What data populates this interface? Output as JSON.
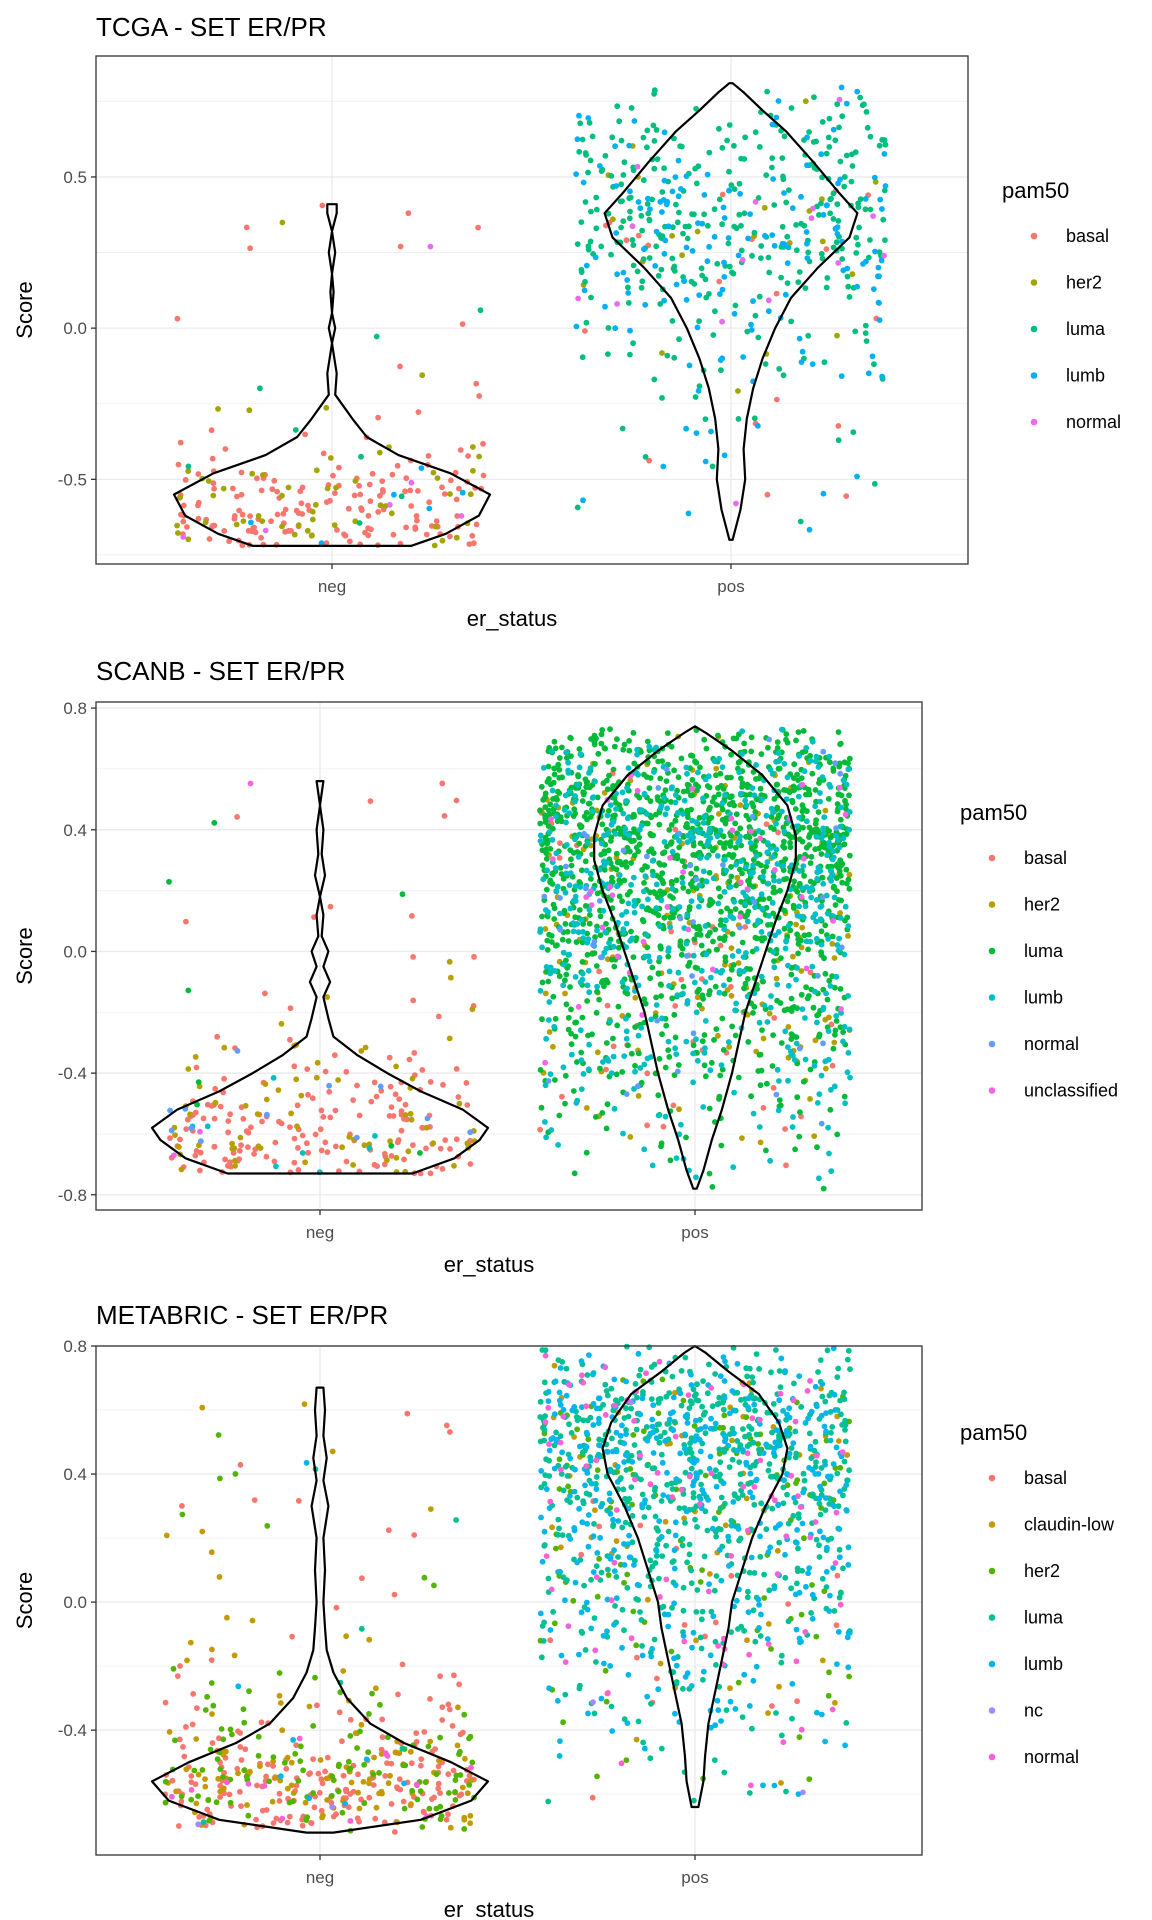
{
  "chart_data": [
    {
      "type": "scatter",
      "title": "TCGA - SET ER/PR",
      "xlabel": "er_status",
      "ylabel": "Score",
      "categories": [
        "neg",
        "pos"
      ],
      "ylim": [
        -0.78,
        0.9
      ],
      "yticks": [
        -0.5,
        0.0,
        0.5
      ],
      "ytick_labels": [
        "-0.5",
        "0.0",
        "0.5"
      ],
      "grid": true,
      "legend": {
        "title": "pam50",
        "placement": "right"
      },
      "series": [
        {
          "name": "basal",
          "color": "#F8766D"
        },
        {
          "name": "her2",
          "color": "#A3A500"
        },
        {
          "name": "luma",
          "color": "#00BF7D"
        },
        {
          "name": "lumb",
          "color": "#00B0F6"
        },
        {
          "name": "normal",
          "color": "#E76BF3"
        }
      ],
      "group_composition": {
        "neg": {
          "basal": 170,
          "her2": 55,
          "luma": 8,
          "lumb": 6,
          "normal": 6
        },
        "pos": {
          "basal": 20,
          "her2": 22,
          "luma": 330,
          "lumb": 160,
          "normal": 15
        }
      },
      "group_range": {
        "neg": [
          -0.72,
          0.41
        ],
        "pos": [
          -0.7,
          0.81
        ]
      },
      "violin": {
        "neg": {
          "min": -0.72,
          "max": 0.41,
          "mode": -0.55,
          "profile": [
            [
              -0.72,
              0.5
            ],
            [
              -0.68,
              0.72
            ],
            [
              -0.62,
              0.93
            ],
            [
              -0.55,
              1.0
            ],
            [
              -0.48,
              0.75
            ],
            [
              -0.42,
              0.42
            ],
            [
              -0.36,
              0.22
            ],
            [
              -0.3,
              0.13
            ],
            [
              -0.22,
              0.02
            ],
            [
              -0.15,
              0.03
            ],
            [
              -0.05,
              0.0
            ],
            [
              0.0,
              0.02
            ],
            [
              0.05,
              0.0
            ],
            [
              0.12,
              0.01
            ],
            [
              0.18,
              0.0
            ],
            [
              0.25,
              0.02
            ],
            [
              0.32,
              0.0
            ],
            [
              0.38,
              0.03
            ],
            [
              0.41,
              0.03
            ]
          ]
        },
        "pos": {
          "min": -0.7,
          "max": 0.81,
          "mode": 0.38,
          "profile": [
            [
              -0.7,
              0.01
            ],
            [
              -0.6,
              0.06
            ],
            [
              -0.5,
              0.09
            ],
            [
              -0.4,
              0.08
            ],
            [
              -0.3,
              0.1
            ],
            [
              -0.2,
              0.14
            ],
            [
              -0.1,
              0.2
            ],
            [
              0.0,
              0.28
            ],
            [
              0.1,
              0.38
            ],
            [
              0.2,
              0.55
            ],
            [
              0.3,
              0.75
            ],
            [
              0.38,
              0.8
            ],
            [
              0.45,
              0.68
            ],
            [
              0.55,
              0.52
            ],
            [
              0.65,
              0.35
            ],
            [
              0.72,
              0.2
            ],
            [
              0.78,
              0.08
            ],
            [
              0.81,
              0.01
            ]
          ]
        }
      }
    },
    {
      "type": "scatter",
      "title": "SCANB - SET ER/PR",
      "xlabel": "er_status",
      "ylabel": "Score",
      "categories": [
        "neg",
        "pos"
      ],
      "ylim": [
        -0.85,
        0.82
      ],
      "yticks": [
        -0.8,
        -0.4,
        0.0,
        0.4,
        0.8
      ],
      "ytick_labels": [
        "-0.8",
        "-0.4",
        "0.0",
        "0.4",
        "0.8"
      ],
      "grid": true,
      "legend": {
        "title": "pam50",
        "placement": "right"
      },
      "series": [
        {
          "name": "basal",
          "color": "#F8766D"
        },
        {
          "name": "her2",
          "color": "#B79F00"
        },
        {
          "name": "luma",
          "color": "#00BA38"
        },
        {
          "name": "lumb",
          "color": "#00BFC4"
        },
        {
          "name": "normal",
          "color": "#619CFF"
        },
        {
          "name": "unclassified",
          "color": "#F564E3"
        }
      ],
      "group_composition": {
        "neg": {
          "basal": 175,
          "her2": 70,
          "luma": 8,
          "lumb": 8,
          "normal": 12,
          "unclassified": 3
        },
        "pos": {
          "basal": 50,
          "her2": 160,
          "luma": 1350,
          "lumb": 600,
          "normal": 45,
          "unclassified": 40
        }
      },
      "group_range": {
        "neg": [
          -0.73,
          0.56
        ],
        "pos": [
          -0.78,
          0.74
        ]
      },
      "violin": {
        "neg": {
          "min": -0.73,
          "max": 0.56,
          "mode": -0.58,
          "profile": [
            [
              -0.73,
              0.55
            ],
            [
              -0.68,
              0.8
            ],
            [
              -0.62,
              0.95
            ],
            [
              -0.58,
              1.0
            ],
            [
              -0.52,
              0.85
            ],
            [
              -0.46,
              0.6
            ],
            [
              -0.4,
              0.4
            ],
            [
              -0.34,
              0.22
            ],
            [
              -0.28,
              0.08
            ],
            [
              -0.22,
              0.05
            ],
            [
              -0.15,
              0.02
            ],
            [
              -0.1,
              0.06
            ],
            [
              -0.05,
              0.02
            ],
            [
              0.0,
              0.05
            ],
            [
              0.05,
              0.01
            ],
            [
              0.12,
              0.02
            ],
            [
              0.18,
              0.0
            ],
            [
              0.25,
              0.03
            ],
            [
              0.32,
              0.01
            ],
            [
              0.4,
              0.02
            ],
            [
              0.48,
              0.0
            ],
            [
              0.56,
              0.02
            ]
          ]
        },
        "pos": {
          "min": -0.78,
          "max": 0.74,
          "mode": 0.35,
          "profile": [
            [
              -0.78,
              0.01
            ],
            [
              -0.72,
              0.05
            ],
            [
              -0.62,
              0.1
            ],
            [
              -0.52,
              0.16
            ],
            [
              -0.4,
              0.22
            ],
            [
              -0.3,
              0.26
            ],
            [
              -0.2,
              0.3
            ],
            [
              -0.1,
              0.36
            ],
            [
              0.0,
              0.42
            ],
            [
              0.1,
              0.48
            ],
            [
              0.2,
              0.55
            ],
            [
              0.3,
              0.6
            ],
            [
              0.38,
              0.6
            ],
            [
              0.48,
              0.55
            ],
            [
              0.58,
              0.4
            ],
            [
              0.66,
              0.22
            ],
            [
              0.72,
              0.06
            ],
            [
              0.74,
              0.0
            ]
          ]
        }
      }
    },
    {
      "type": "scatter",
      "title": "METABRIC - SET ER/PR",
      "xlabel": "er_status",
      "ylabel": "Score",
      "categories": [
        "neg",
        "pos"
      ],
      "ylim": [
        -0.79,
        0.8
      ],
      "yticks": [
        -0.4,
        0.0,
        0.4,
        0.8
      ],
      "ytick_labels": [
        "-0.4",
        "0.0",
        "0.4",
        "0.8"
      ],
      "grid": true,
      "legend": {
        "title": "pam50",
        "placement": "right"
      },
      "series": [
        {
          "name": "basal",
          "color": "#F8766D"
        },
        {
          "name": "claudin-low",
          "color": "#C49A00"
        },
        {
          "name": "her2",
          "color": "#53B400"
        },
        {
          "name": "luma",
          "color": "#00C094"
        },
        {
          "name": "lumb",
          "color": "#00B6EB"
        },
        {
          "name": "nc",
          "color": "#A58AFF"
        },
        {
          "name": "normal",
          "color": "#FB61D7"
        }
      ],
      "group_composition": {
        "neg": {
          "basal": 220,
          "claudin-low": 110,
          "her2": 120,
          "luma": 6,
          "lumb": 8,
          "nc": 2,
          "normal": 14
        },
        "pos": {
          "basal": 20,
          "claudin-low": 60,
          "her2": 120,
          "luma": 650,
          "lumb": 400,
          "nc": 3,
          "normal": 90
        }
      },
      "group_range": {
        "neg": [
          -0.72,
          0.67
        ],
        "pos": [
          -0.64,
          0.8
        ]
      },
      "violin": {
        "neg": {
          "min": -0.72,
          "max": 0.67,
          "mode": -0.55,
          "profile": [
            [
              -0.72,
              0.08
            ],
            [
              -0.68,
              0.6
            ],
            [
              -0.62,
              0.9
            ],
            [
              -0.56,
              1.0
            ],
            [
              -0.5,
              0.78
            ],
            [
              -0.44,
              0.5
            ],
            [
              -0.38,
              0.3
            ],
            [
              -0.3,
              0.16
            ],
            [
              -0.22,
              0.08
            ],
            [
              -0.15,
              0.04
            ],
            [
              -0.08,
              0.03
            ],
            [
              0.0,
              0.02
            ],
            [
              0.1,
              0.03
            ],
            [
              0.2,
              0.02
            ],
            [
              0.3,
              0.05
            ],
            [
              0.38,
              0.02
            ],
            [
              0.45,
              0.04
            ],
            [
              0.52,
              0.02
            ],
            [
              0.6,
              0.03
            ],
            [
              0.67,
              0.02
            ]
          ]
        },
        "pos": {
          "min": -0.64,
          "max": 0.8,
          "mode": 0.45,
          "profile": [
            [
              -0.64,
              0.02
            ],
            [
              -0.56,
              0.05
            ],
            [
              -0.48,
              0.06
            ],
            [
              -0.38,
              0.08
            ],
            [
              -0.28,
              0.12
            ],
            [
              -0.18,
              0.16
            ],
            [
              -0.08,
              0.2
            ],
            [
              0.0,
              0.22
            ],
            [
              0.1,
              0.28
            ],
            [
              0.2,
              0.34
            ],
            [
              0.3,
              0.42
            ],
            [
              0.4,
              0.52
            ],
            [
              0.48,
              0.55
            ],
            [
              0.56,
              0.5
            ],
            [
              0.65,
              0.38
            ],
            [
              0.72,
              0.2
            ],
            [
              0.78,
              0.06
            ],
            [
              0.8,
              0.0
            ]
          ]
        }
      }
    }
  ]
}
